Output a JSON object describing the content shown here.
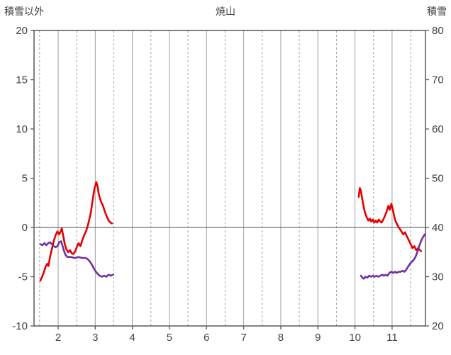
{
  "chart_data": {
    "type": "line",
    "title": "焼山",
    "left_axis": {
      "label": "積雪以外",
      "min": -10,
      "max": 20,
      "ticks": [
        20,
        15,
        10,
        5,
        0,
        -5,
        -10
      ]
    },
    "right_axis": {
      "label": "積雪",
      "min": 20,
      "max": 80,
      "ticks": [
        80,
        70,
        60,
        50,
        40,
        30,
        20
      ]
    },
    "x_axis": {
      "min": 1.35,
      "max": 11.9,
      "ticks": [
        2,
        3,
        4,
        5,
        6,
        7,
        8,
        9,
        10,
        11
      ]
    },
    "grid": {
      "solid_x": [
        2,
        3,
        4,
        5,
        6,
        7,
        8,
        9,
        10,
        11
      ],
      "dashed_x": [
        1.5,
        2.5,
        3.5,
        4.5,
        5.5,
        6.5,
        7.5,
        8.5,
        9.5,
        10.5,
        11.5
      ],
      "zero_line": 0
    },
    "colors": {
      "red_series": "#e60000",
      "purple_series": "#7030a0",
      "gridline": "#a0a0a0",
      "axis": "#595959",
      "zero_line": "#6e6e6e"
    },
    "series": [
      {
        "name": "red-line",
        "color": "#e60000",
        "axis": "left",
        "segments": [
          [
            [
              1.52,
              -5.4
            ],
            [
              1.57,
              -5.0
            ],
            [
              1.62,
              -4.5
            ],
            [
              1.66,
              -4.0
            ],
            [
              1.7,
              -3.7
            ],
            [
              1.74,
              -3.9
            ],
            [
              1.78,
              -3.0
            ],
            [
              1.83,
              -2.2
            ],
            [
              1.88,
              -1.4
            ],
            [
              1.93,
              -0.8
            ],
            [
              1.98,
              -0.4
            ],
            [
              2.03,
              -0.7
            ],
            [
              2.08,
              -0.3
            ],
            [
              2.1,
              -0.1
            ],
            [
              2.14,
              -0.9
            ],
            [
              2.18,
              -1.7
            ],
            [
              2.22,
              -2.2
            ],
            [
              2.27,
              -2.5
            ],
            [
              2.32,
              -2.3
            ],
            [
              2.36,
              -2.6
            ],
            [
              2.41,
              -2.7
            ],
            [
              2.46,
              -2.4
            ],
            [
              2.5,
              -2.0
            ],
            [
              2.55,
              -1.6
            ],
            [
              2.6,
              -1.9
            ],
            [
              2.65,
              -1.3
            ],
            [
              2.7,
              -0.8
            ],
            [
              2.76,
              -0.3
            ],
            [
              2.82,
              0.5
            ],
            [
              2.88,
              1.5
            ],
            [
              2.93,
              2.8
            ],
            [
              2.98,
              4.0
            ],
            [
              3.03,
              4.6
            ],
            [
              3.06,
              4.2
            ],
            [
              3.09,
              3.5
            ],
            [
              3.13,
              2.9
            ],
            [
              3.17,
              2.5
            ],
            [
              3.21,
              2.2
            ],
            [
              3.26,
              1.6
            ],
            [
              3.31,
              1.1
            ],
            [
              3.36,
              0.7
            ],
            [
              3.41,
              0.5
            ],
            [
              3.45,
              0.4
            ]
          ],
          [
            [
              10.1,
              3.1
            ],
            [
              10.13,
              4.0
            ],
            [
              10.16,
              3.7
            ],
            [
              10.2,
              2.8
            ],
            [
              10.24,
              2.0
            ],
            [
              10.28,
              1.4
            ],
            [
              10.32,
              1.0
            ],
            [
              10.36,
              0.7
            ],
            [
              10.4,
              0.9
            ],
            [
              10.44,
              0.6
            ],
            [
              10.48,
              0.8
            ],
            [
              10.52,
              0.5
            ],
            [
              10.56,
              0.7
            ],
            [
              10.6,
              0.5
            ],
            [
              10.64,
              0.8
            ],
            [
              10.68,
              0.6
            ],
            [
              10.72,
              0.5
            ],
            [
              10.76,
              0.8
            ],
            [
              10.8,
              1.1
            ],
            [
              10.85,
              1.6
            ],
            [
              10.9,
              2.2
            ],
            [
              10.94,
              1.8
            ],
            [
              10.98,
              2.4
            ],
            [
              11.02,
              1.8
            ],
            [
              11.06,
              1.1
            ],
            [
              11.1,
              0.6
            ],
            [
              11.15,
              0.2
            ],
            [
              11.2,
              -0.1
            ],
            [
              11.25,
              -0.4
            ],
            [
              11.3,
              -0.7
            ],
            [
              11.35,
              -0.5
            ],
            [
              11.4,
              -0.9
            ],
            [
              11.45,
              -1.3
            ],
            [
              11.5,
              -1.7
            ],
            [
              11.55,
              -2.1
            ],
            [
              11.6,
              -1.9
            ],
            [
              11.65,
              -2.3
            ],
            [
              11.7,
              -2.1
            ],
            [
              11.78,
              -2.4
            ]
          ]
        ]
      },
      {
        "name": "purple-line",
        "color": "#7030a0",
        "axis": "left",
        "segments": [
          [
            [
              1.52,
              -1.7
            ],
            [
              1.58,
              -1.8
            ],
            [
              1.63,
              -1.6
            ],
            [
              1.68,
              -1.8
            ],
            [
              1.73,
              -1.6
            ],
            [
              1.78,
              -1.5
            ],
            [
              1.83,
              -1.7
            ],
            [
              1.88,
              -1.9
            ],
            [
              1.93,
              -2.0
            ],
            [
              1.98,
              -1.9
            ],
            [
              2.03,
              -1.5
            ],
            [
              2.08,
              -1.4
            ],
            [
              2.12,
              -1.9
            ],
            [
              2.16,
              -2.4
            ],
            [
              2.2,
              -2.8
            ],
            [
              2.25,
              -3.0
            ],
            [
              2.35,
              -3.0
            ],
            [
              2.45,
              -3.1
            ],
            [
              2.55,
              -3.0
            ],
            [
              2.65,
              -3.1
            ],
            [
              2.75,
              -3.1
            ],
            [
              2.82,
              -3.3
            ],
            [
              2.88,
              -3.6
            ],
            [
              2.94,
              -4.0
            ],
            [
              3.0,
              -4.4
            ],
            [
              3.06,
              -4.7
            ],
            [
              3.12,
              -4.9
            ],
            [
              3.18,
              -5.0
            ],
            [
              3.24,
              -4.9
            ],
            [
              3.3,
              -5.0
            ],
            [
              3.36,
              -4.8
            ],
            [
              3.42,
              -4.9
            ],
            [
              3.48,
              -4.8
            ]
          ],
          [
            [
              10.16,
              -4.9
            ],
            [
              10.2,
              -5.1
            ],
            [
              10.24,
              -5.2
            ],
            [
              10.28,
              -5.0
            ],
            [
              10.33,
              -5.1
            ],
            [
              10.38,
              -4.9
            ],
            [
              10.43,
              -5.0
            ],
            [
              10.48,
              -4.9
            ],
            [
              10.53,
              -5.0
            ],
            [
              10.58,
              -4.9
            ],
            [
              10.63,
              -5.0
            ],
            [
              10.68,
              -4.9
            ],
            [
              10.73,
              -4.8
            ],
            [
              10.78,
              -4.9
            ],
            [
              10.83,
              -4.8
            ],
            [
              10.88,
              -4.9
            ],
            [
              10.93,
              -4.6
            ],
            [
              10.98,
              -4.5
            ],
            [
              11.03,
              -4.6
            ],
            [
              11.08,
              -4.5
            ],
            [
              11.13,
              -4.6
            ],
            [
              11.18,
              -4.5
            ],
            [
              11.23,
              -4.5
            ],
            [
              11.28,
              -4.4
            ],
            [
              11.33,
              -4.5
            ],
            [
              11.38,
              -4.3
            ],
            [
              11.43,
              -4.0
            ],
            [
              11.48,
              -3.7
            ],
            [
              11.53,
              -3.5
            ],
            [
              11.58,
              -3.3
            ],
            [
              11.63,
              -3.0
            ],
            [
              11.68,
              -2.5
            ],
            [
              11.73,
              -1.9
            ],
            [
              11.78,
              -1.4
            ],
            [
              11.83,
              -1.0
            ],
            [
              11.88,
              -0.7
            ]
          ]
        ]
      }
    ]
  }
}
